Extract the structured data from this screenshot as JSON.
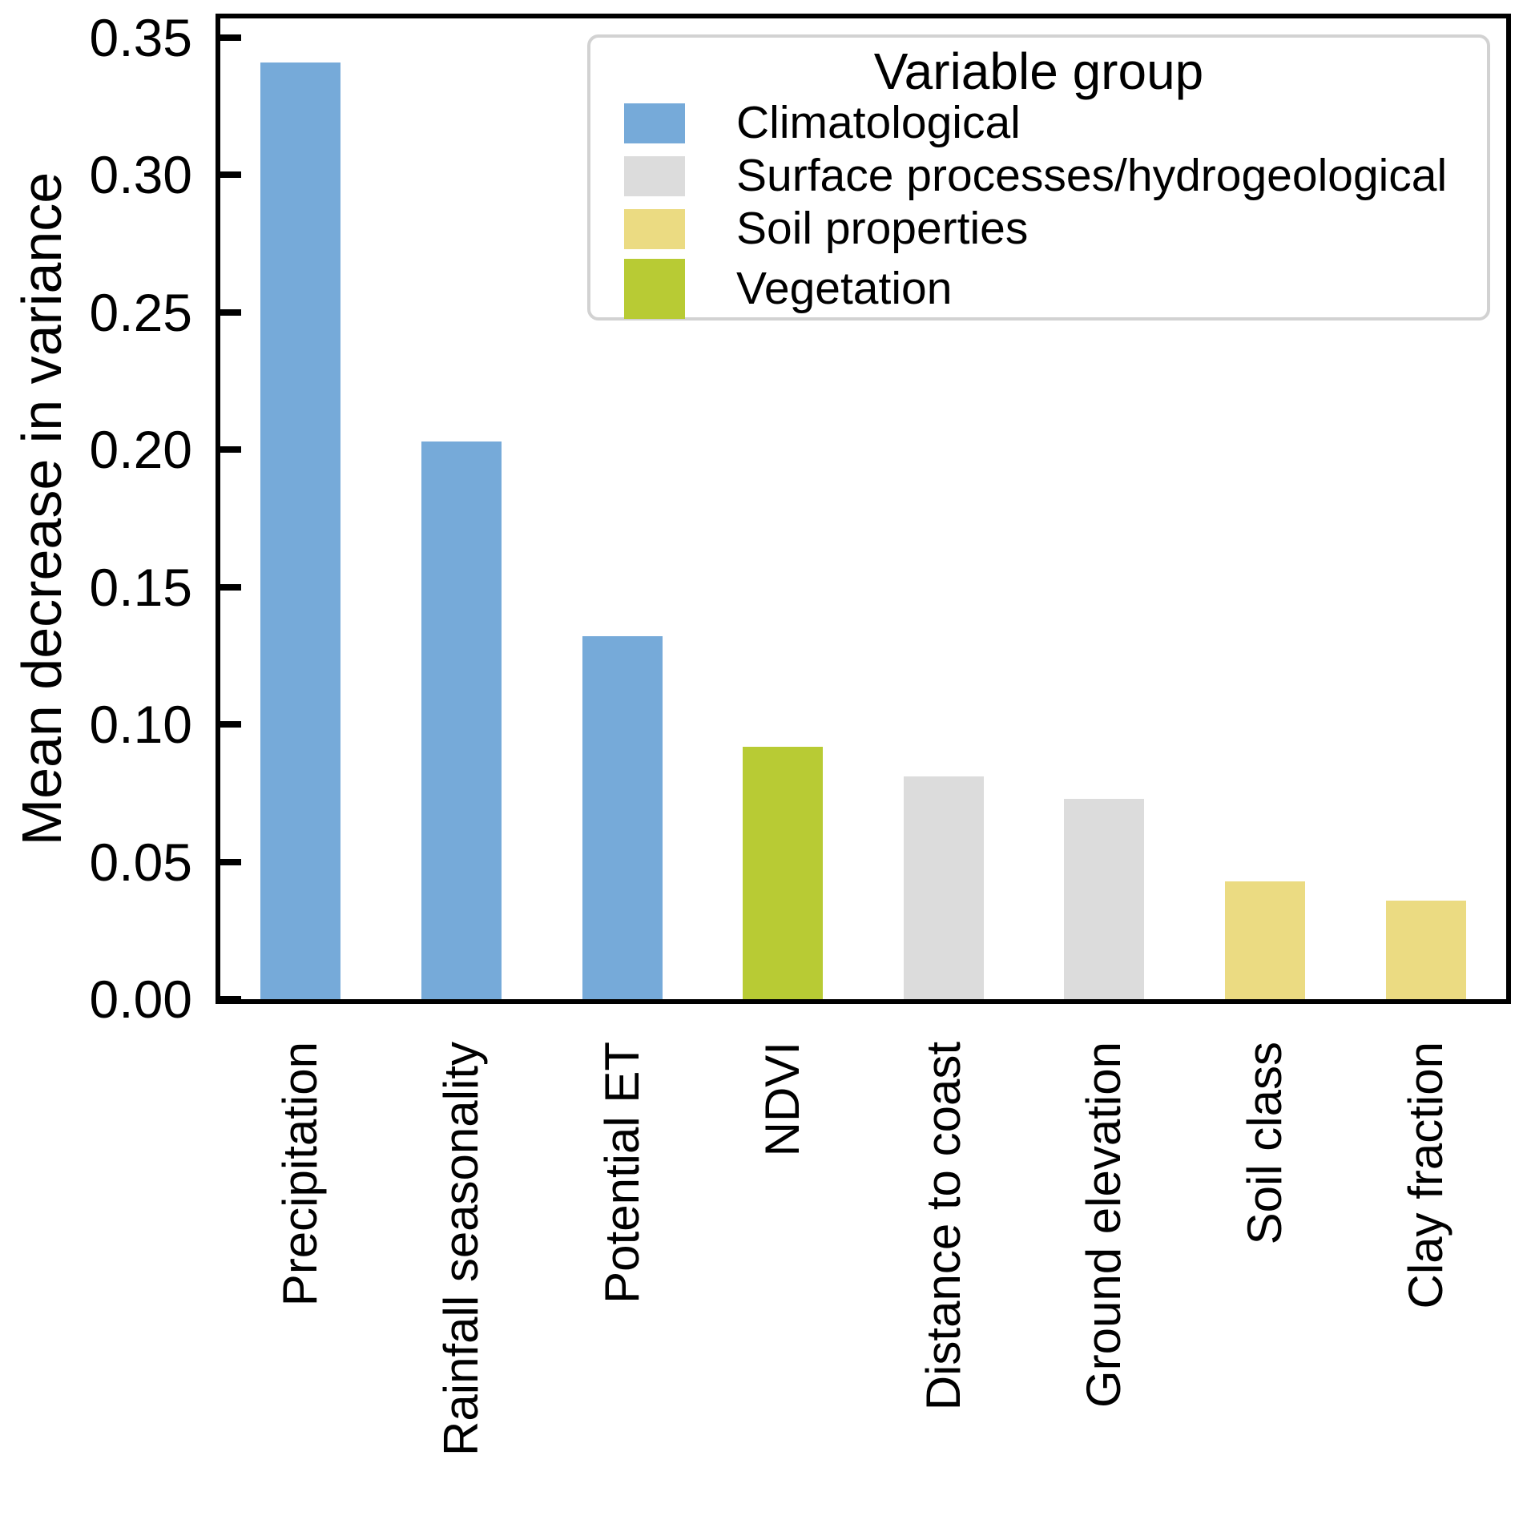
{
  "figure": {
    "background": "#ffffff"
  },
  "chart_data": {
    "type": "bar",
    "title": "",
    "xlabel": "",
    "ylabel": "Mean decrease in variance",
    "ylim": [
      0,
      0.357
    ],
    "grid": false,
    "categories": [
      "Precipitation",
      "Rainfall seasonality",
      "Potential ET",
      "NDVI",
      "Distance to coast",
      "Ground elevation",
      "Soil class",
      "Clay fraction"
    ],
    "values": [
      0.341,
      0.203,
      0.132,
      0.092,
      0.081,
      0.073,
      0.043,
      0.036
    ],
    "bar_groups": [
      "Climatological",
      "Climatological",
      "Climatological",
      "Vegetation",
      "Surface processes/hydrogeological",
      "Surface processes/hydrogeological",
      "Soil properties",
      "Soil properties"
    ],
    "yticks": [
      {
        "label": "0.00",
        "value": 0.0
      },
      {
        "label": "0.05",
        "value": 0.05
      },
      {
        "label": "0.10",
        "value": 0.1
      },
      {
        "label": "0.15",
        "value": 0.15
      },
      {
        "label": "0.20",
        "value": 0.2
      },
      {
        "label": "0.25",
        "value": 0.25
      },
      {
        "label": "0.30",
        "value": 0.3
      },
      {
        "label": "0.35",
        "value": 0.35
      }
    ],
    "legend": {
      "title": "Variable group",
      "position": "upper right",
      "entries": [
        {
          "label": "Climatological",
          "color": "#76aad9"
        },
        {
          "label": "Surface processes/hydrogeological",
          "color": "#dcdcdc"
        },
        {
          "label": "Soil properties",
          "color": "#ebdb82"
        },
        {
          "label": "Vegetation",
          "color": "#b8cb34"
        }
      ]
    },
    "colors": {
      "axis": "#000000",
      "legend_border": "#d2d2d2",
      "background": "#ffffff"
    }
  }
}
